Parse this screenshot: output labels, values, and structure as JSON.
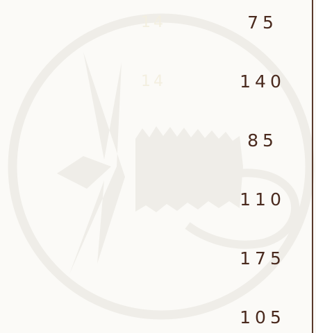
{
  "table": {
    "faint_labels": [
      "14",
      "14"
    ],
    "values": [
      "75",
      "140",
      "85",
      "110",
      "175",
      "105"
    ]
  }
}
